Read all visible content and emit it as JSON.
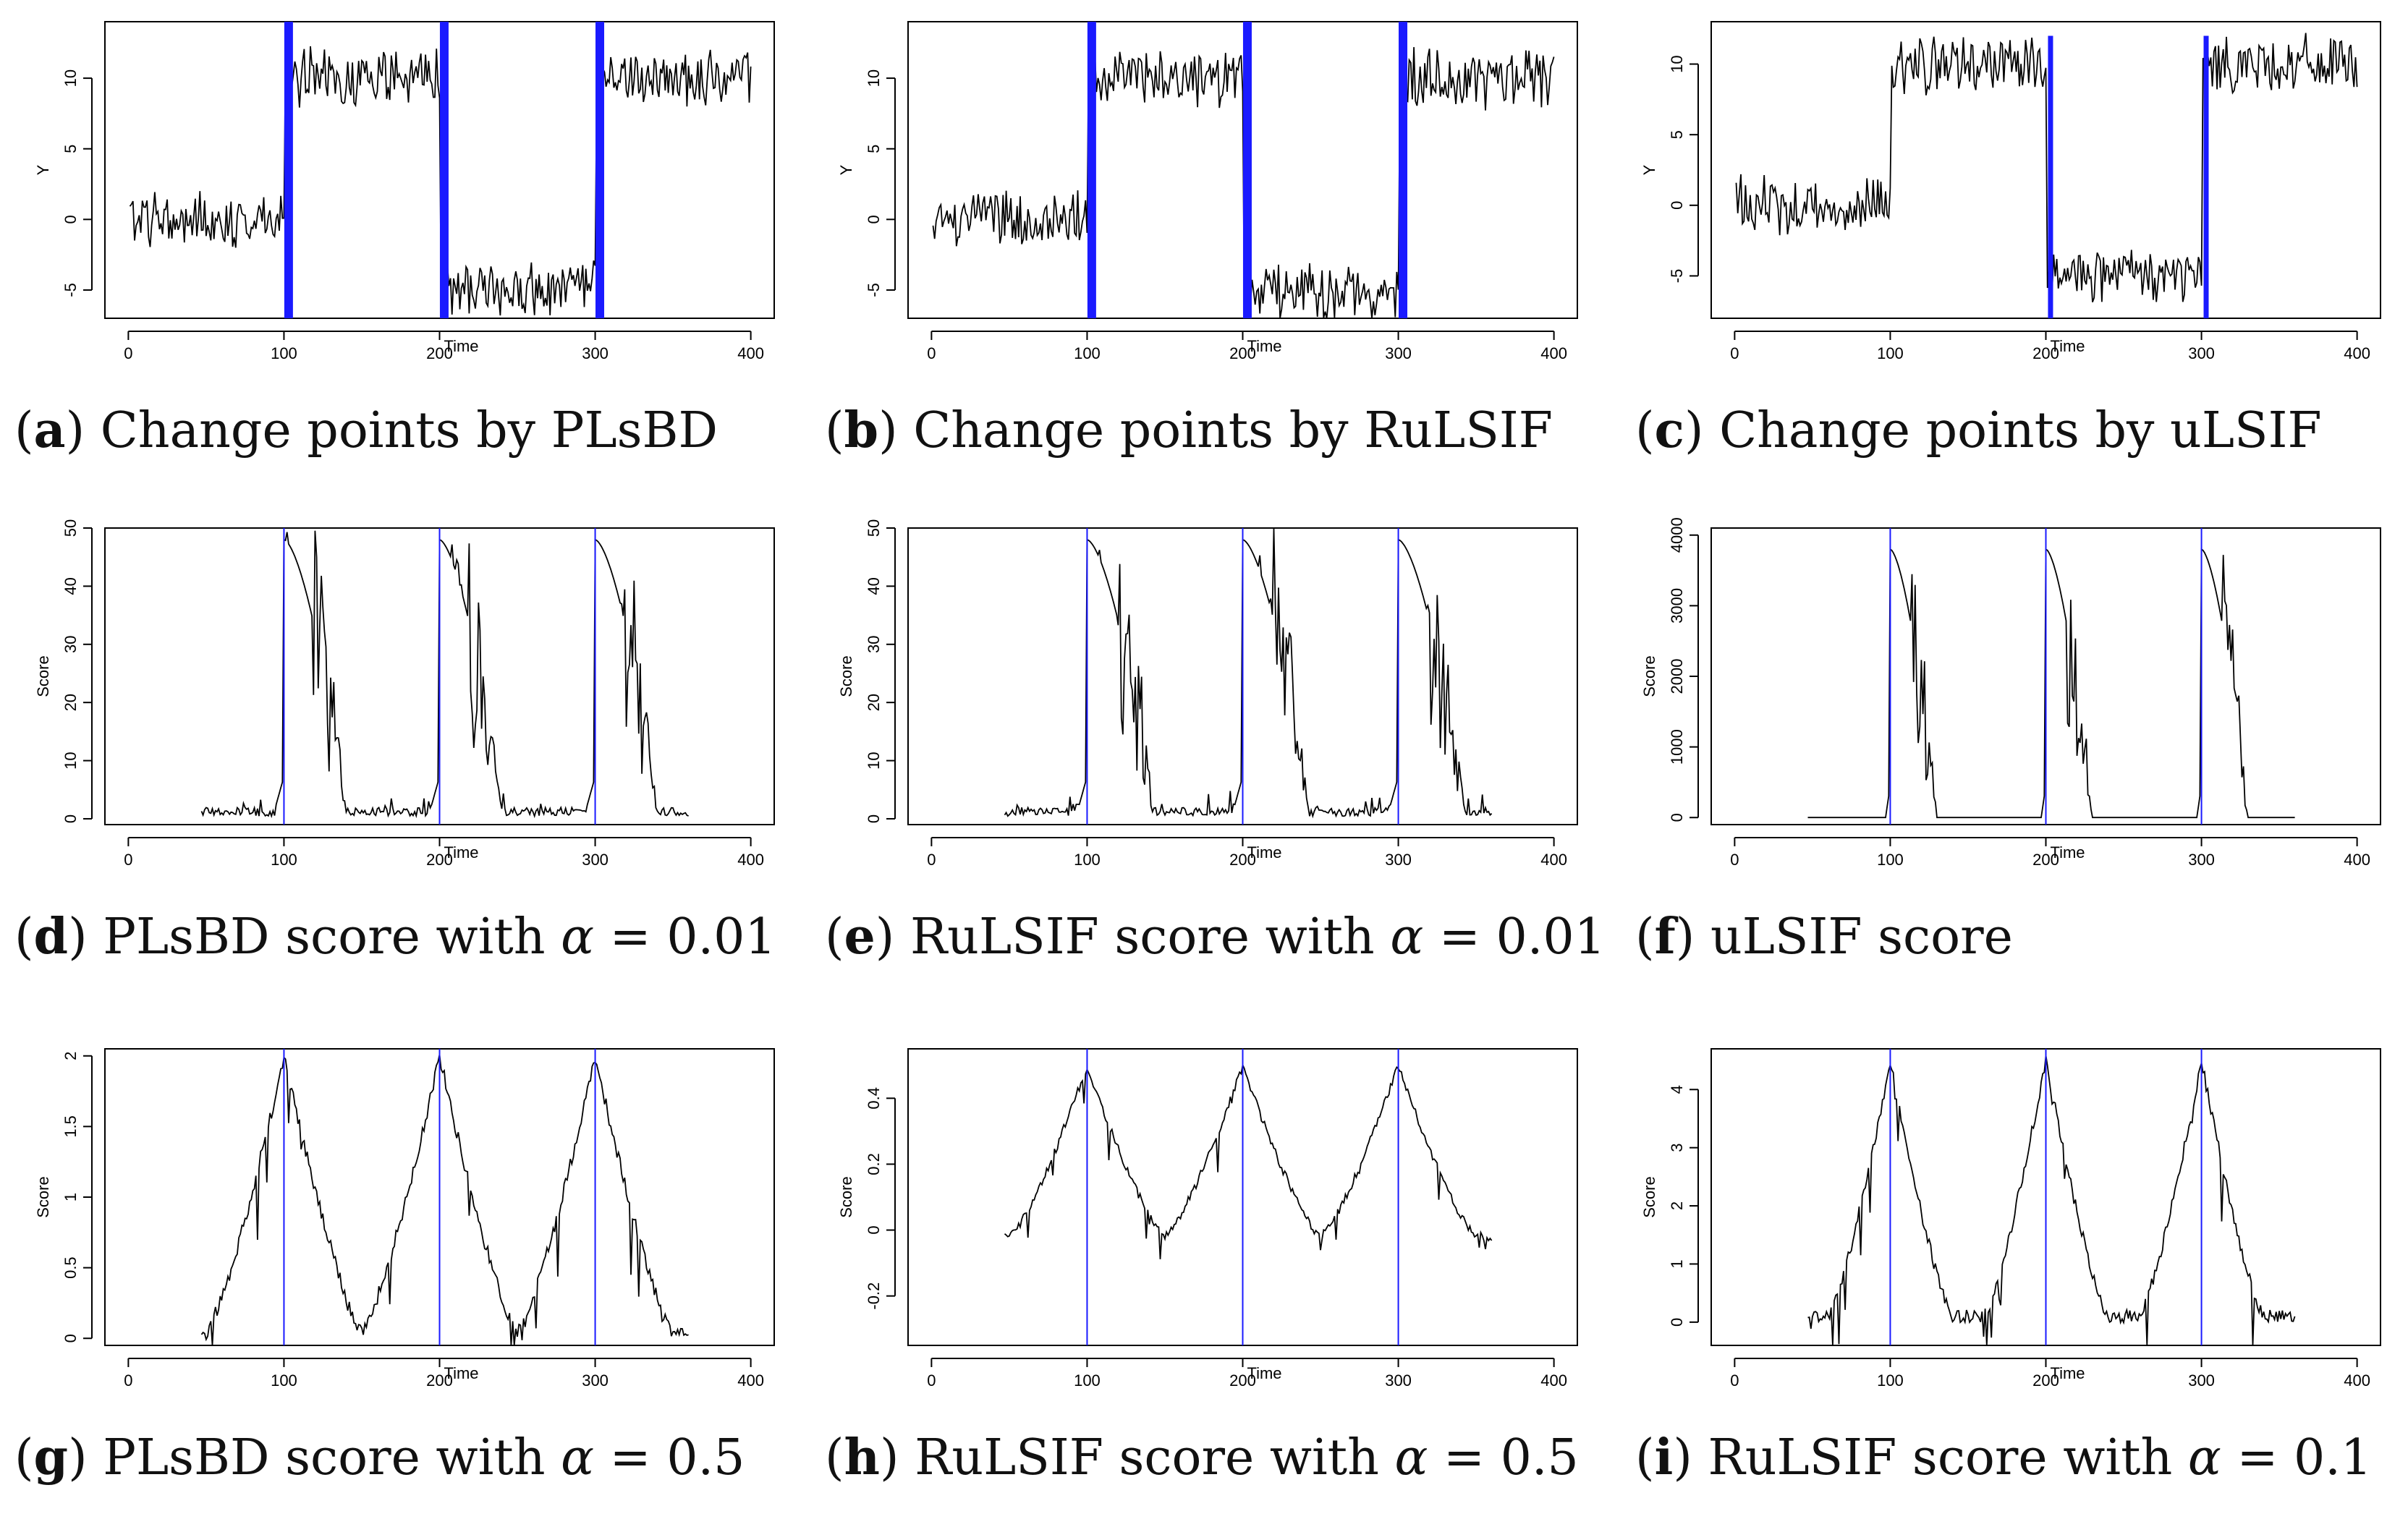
{
  "chart_data": [
    {
      "type": "line",
      "caption_letter": "a",
      "caption": "Change points by PLsBD",
      "xlabel": "Time",
      "ylabel": "Y",
      "xlim": [
        0,
        400
      ],
      "ylim": [
        -7,
        14
      ],
      "xticks": [
        0,
        100,
        200,
        300,
        400
      ],
      "yticks": [
        -5,
        0,
        5,
        10
      ],
      "series_kind": "signal",
      "markers": [
        103,
        203,
        303
      ],
      "marker_style": "thick",
      "ymarks_range": [
        -7,
        14
      ]
    },
    {
      "type": "line",
      "caption_letter": "b",
      "caption": "Change points by RuLSIF",
      "xlabel": "Time",
      "ylabel": "Y",
      "xlim": [
        0,
        400
      ],
      "ylim": [
        -7,
        14
      ],
      "xticks": [
        0,
        100,
        200,
        300,
        400
      ],
      "yticks": [
        -5,
        0,
        5,
        10
      ],
      "series_kind": "signal",
      "markers": [
        103,
        203,
        303
      ],
      "marker_style": "thick",
      "ymarks_range": [
        -7,
        14
      ]
    },
    {
      "type": "line",
      "caption_letter": "c",
      "caption": "Change points by uLSIF",
      "xlabel": "Time",
      "ylabel": "Y",
      "xlim": [
        0,
        400
      ],
      "ylim": [
        -8,
        13
      ],
      "xticks": [
        0,
        100,
        200,
        300,
        400
      ],
      "yticks": [
        -5,
        0,
        5,
        10
      ],
      "series_kind": "signal",
      "markers": [
        203,
        303
      ],
      "marker_style": "medium",
      "ymarks_range": [
        -8,
        12
      ]
    },
    {
      "type": "line",
      "caption_letter": "d",
      "caption": "PLsBD score with α = 0.01",
      "xlabel": "Time",
      "ylabel": "Score",
      "xlim": [
        0,
        400
      ],
      "ylim": [
        -1,
        50
      ],
      "xticks": [
        0,
        100,
        200,
        300,
        400
      ],
      "yticks": [
        0,
        10,
        20,
        30,
        40,
        50
      ],
      "series_kind": "score",
      "score_range": [
        47,
        360
      ],
      "peak": 48,
      "base": 1.5,
      "decay": 30,
      "rise": 6,
      "tail_noise": 3,
      "markers": [
        100,
        200,
        300
      ],
      "marker_style": "thin"
    },
    {
      "type": "line",
      "caption_letter": "e",
      "caption": "RuLSIF score with α = 0.01",
      "xlabel": "Time",
      "ylabel": "Score",
      "xlim": [
        0,
        400
      ],
      "ylim": [
        -1,
        50
      ],
      "xticks": [
        0,
        100,
        200,
        300,
        400
      ],
      "yticks": [
        0,
        10,
        20,
        30,
        40,
        50
      ],
      "series_kind": "score",
      "score_range": [
        47,
        360
      ],
      "peak": 48,
      "base": 1.5,
      "decay": 32,
      "rise": 6,
      "tail_noise": 3,
      "markers": [
        100,
        200,
        300
      ],
      "marker_style": "thin"
    },
    {
      "type": "line",
      "caption_letter": "f",
      "caption": "uLSIF score",
      "xlabel": "Time",
      "ylabel": "Score",
      "xlim": [
        0,
        400
      ],
      "ylim": [
        -100,
        4100
      ],
      "xticks": [
        0,
        100,
        200,
        300,
        400
      ],
      "yticks": [
        0,
        1000,
        2000,
        3000,
        4000
      ],
      "series_kind": "score",
      "score_range": [
        47,
        360
      ],
      "peak": 3800,
      "base": 0,
      "decay": 22,
      "rise": 3,
      "tail_noise": 0,
      "markers": [
        100,
        200,
        300
      ],
      "marker_style": "thin"
    },
    {
      "type": "line",
      "caption_letter": "g",
      "caption": "PLsBD score with α = 0.5",
      "xlabel": "Time",
      "ylabel": "Score",
      "xlim": [
        0,
        400
      ],
      "ylim": [
        -0.05,
        2.05
      ],
      "xticks": [
        0,
        100,
        200,
        300,
        400
      ],
      "yticks": [
        0.0,
        0.5,
        1.0,
        1.5,
        2.0
      ],
      "series_kind": "triangle",
      "score_range": [
        47,
        360
      ],
      "peak": 2.0,
      "base": 0.05,
      "halfwidth": 50,
      "markers": [
        100,
        200,
        300
      ],
      "marker_style": "thin"
    },
    {
      "type": "line",
      "caption_letter": "h",
      "caption": "RuLSIF score with α = 0.5",
      "xlabel": "Time",
      "ylabel": "Score",
      "xlim": [
        0,
        400
      ],
      "ylim": [
        -0.35,
        0.55
      ],
      "xticks": [
        0,
        100,
        200,
        300,
        400
      ],
      "yticks": [
        -0.2,
        0.0,
        0.2,
        0.4
      ],
      "series_kind": "triangle",
      "score_range": [
        47,
        360
      ],
      "peak": 0.5,
      "base": -0.02,
      "halfwidth": 50,
      "markers": [
        100,
        200,
        300
      ],
      "marker_style": "thin"
    },
    {
      "type": "line",
      "caption_letter": "i",
      "caption": "RuLSIF score with α = 0.1",
      "xlabel": "Time",
      "ylabel": "Score",
      "xlim": [
        0,
        400
      ],
      "ylim": [
        -0.4,
        4.7
      ],
      "xticks": [
        0,
        100,
        200,
        300,
        400
      ],
      "yticks": [
        0,
        1,
        2,
        3,
        4
      ],
      "series_kind": "triangle",
      "score_range": [
        47,
        360
      ],
      "peak": 4.5,
      "base": 0.1,
      "halfwidth": 40,
      "markers": [
        100,
        200,
        300
      ],
      "marker_style": "thin"
    }
  ],
  "colors": {
    "marker": "#1a1aff",
    "series": "#000000",
    "frame": "#000000"
  }
}
